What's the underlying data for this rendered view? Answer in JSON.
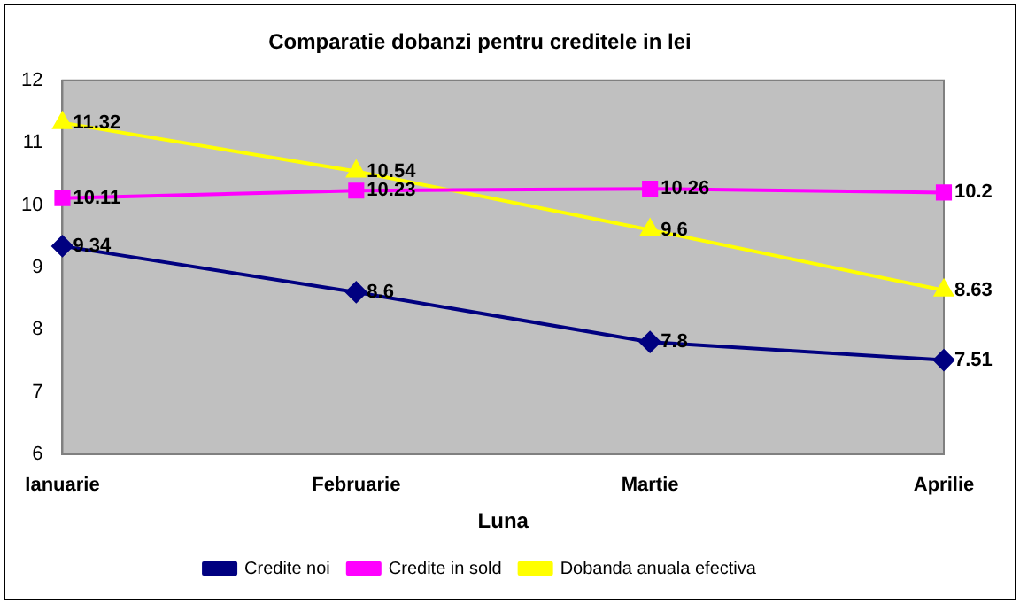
{
  "chart_data": {
    "type": "line",
    "title": "Comparatie dobanzi pentru creditele in lei",
    "xlabel": "Luna",
    "categories": [
      "Ianuarie",
      "Februarie",
      "Martie",
      "Aprilie"
    ],
    "series": [
      {
        "name": "Credite noi",
        "color": "#000080",
        "marker": "diamond",
        "values": [
          9.34,
          8.6,
          7.8,
          7.51
        ]
      },
      {
        "name": "Credite in sold",
        "color": "#ff00ff",
        "marker": "square",
        "values": [
          10.11,
          10.23,
          10.26,
          10.2
        ]
      },
      {
        "name": "Dobanda anuala efectiva",
        "color": "#ffff00",
        "marker": "triangle",
        "values": [
          11.32,
          10.54,
          9.6,
          8.63
        ]
      }
    ],
    "ylim": [
      6,
      12
    ],
    "yticks": [
      6,
      7,
      8,
      9,
      10,
      11,
      12
    ],
    "grid": false,
    "legend": "bottom",
    "data_labels": true,
    "line_style": "solid"
  }
}
